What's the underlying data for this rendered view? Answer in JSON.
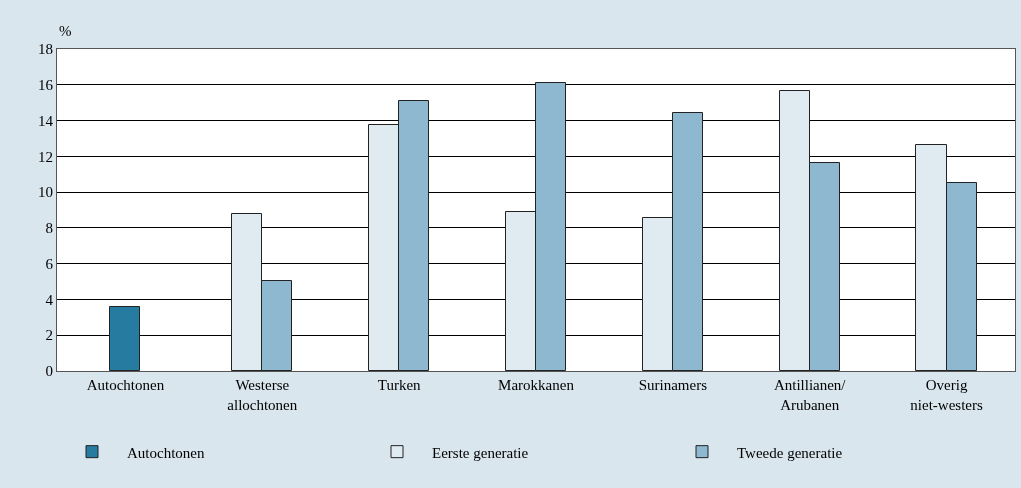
{
  "chart_data": {
    "type": "bar",
    "ylabel": "%",
    "categories": [
      "Autochtonen",
      "Westerse\nallochtonen",
      "Turken",
      "Marokkanen",
      "Surinamers",
      "Antillianen/\nArubanen",
      "Overig\nniet-westers"
    ],
    "series": [
      {
        "name": "Autochtonen",
        "color": "#267ba0",
        "values": [
          3.55,
          null,
          null,
          null,
          null,
          null,
          null
        ]
      },
      {
        "name": "Eerste generatie",
        "color": "#dfeaf1",
        "values": [
          null,
          8.8,
          13.75,
          8.9,
          8.55,
          15.65,
          12.65
        ]
      },
      {
        "name": "Tweede generatie",
        "color": "#8db8cf",
        "values": [
          null,
          5.05,
          15.1,
          16.1,
          14.45,
          11.65,
          10.5
        ]
      }
    ],
    "ylim": [
      0,
      18
    ],
    "yticks": [
      0,
      2,
      4,
      6,
      8,
      10,
      12,
      14,
      16,
      18
    ],
    "grid": "y",
    "legend": "bottom left"
  }
}
